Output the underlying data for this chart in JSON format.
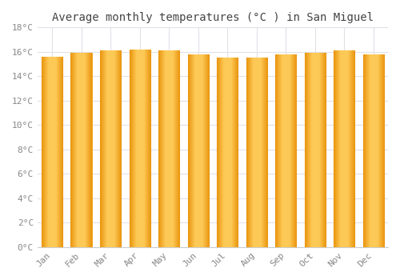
{
  "title": "Average monthly temperatures (°C ) in San Miguel",
  "months": [
    "Jan",
    "Feb",
    "Mar",
    "Apr",
    "May",
    "Jun",
    "Jul",
    "Aug",
    "Sep",
    "Oct",
    "Nov",
    "Dec"
  ],
  "values": [
    15.6,
    15.9,
    16.1,
    16.2,
    16.1,
    15.8,
    15.5,
    15.5,
    15.8,
    15.9,
    16.1,
    15.8
  ],
  "bar_color_left": "#F5A623",
  "bar_color_center": "#FFD966",
  "bar_edge_color": "#C87D00",
  "background_color": "#FFFFFF",
  "plot_bg_color": "#FFFFFF",
  "grid_color": "#E0E0E8",
  "ylim": [
    0,
    18
  ],
  "yticks": [
    0,
    2,
    4,
    6,
    8,
    10,
    12,
    14,
    16,
    18
  ],
  "ytick_labels": [
    "0°C",
    "2°C",
    "4°C",
    "6°C",
    "8°C",
    "10°C",
    "12°C",
    "14°C",
    "16°C",
    "18°C"
  ],
  "title_fontsize": 10,
  "tick_fontsize": 8,
  "font_family": "monospace",
  "tick_color": "#888888"
}
